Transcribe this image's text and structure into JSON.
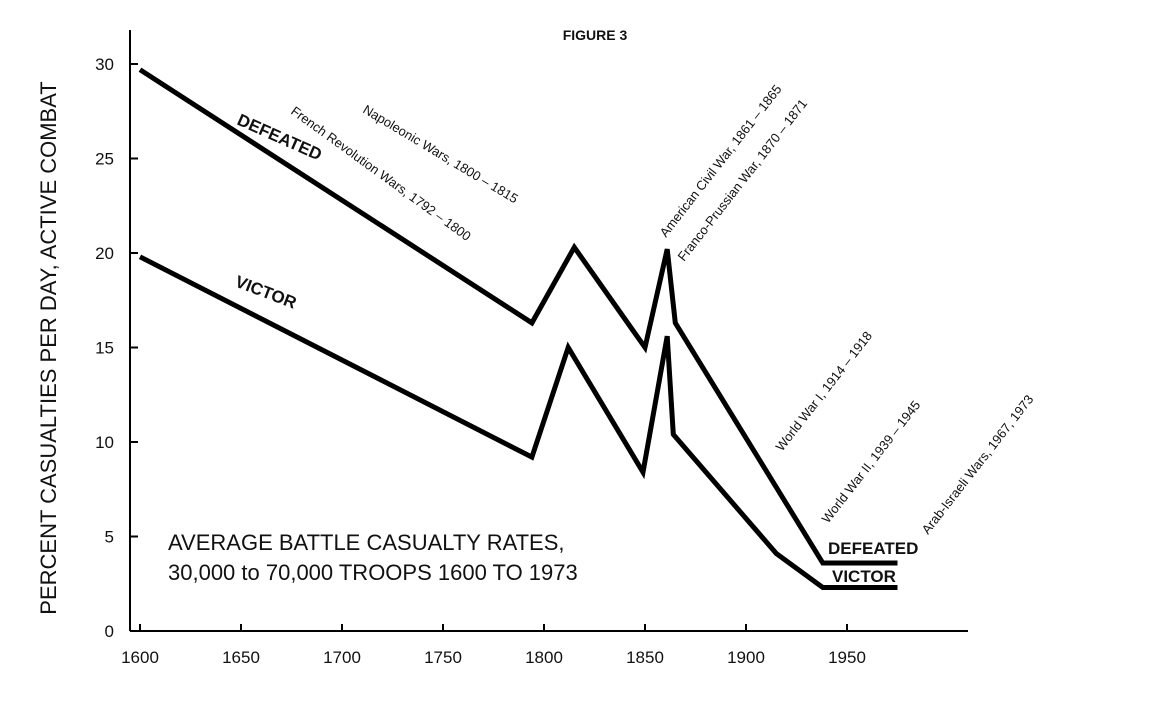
{
  "chart_data": {
    "type": "line",
    "title": "FIGURE 3",
    "ylabel": "PERCENT CASUALTIES PER DAY, ACTIVE COMBAT",
    "xlabel": "",
    "xlim": [
      1600,
      2000
    ],
    "ylim": [
      0,
      30
    ],
    "x_ticks": [
      1600,
      1650,
      1700,
      1750,
      1800,
      1850,
      1900,
      1950
    ],
    "y_ticks": [
      0,
      5,
      10,
      15,
      20,
      25,
      30
    ],
    "grid": false,
    "series": [
      {
        "name": "DEFEATED",
        "color": "#000000",
        "points": [
          [
            1600,
            29.7
          ],
          [
            1794,
            16.3
          ],
          [
            1815,
            20.3
          ],
          [
            1850,
            15.0
          ],
          [
            1861,
            20.2
          ],
          [
            1865,
            16.3
          ],
          [
            1938,
            3.6
          ],
          [
            1975,
            3.6
          ]
        ],
        "labels": [
          "DEFEATED",
          "DEFEATED"
        ]
      },
      {
        "name": "VICTOR",
        "color": "#000000",
        "points": [
          [
            1600,
            19.8
          ],
          [
            1794,
            9.2
          ],
          [
            1812,
            15.0
          ],
          [
            1849,
            8.4
          ],
          [
            1861,
            15.6
          ],
          [
            1864,
            10.4
          ],
          [
            1915,
            4.1
          ],
          [
            1938,
            2.3
          ],
          [
            1975,
            2.3
          ]
        ],
        "labels": [
          "VICTOR",
          "VICTOR"
        ]
      }
    ],
    "annotations": [
      "Napoleonic Wars, 1800 – 1815",
      "French Revolution Wars, 1792 – 1800",
      "American Civil War, 1861 – 1865",
      "Franco-Prussian War, 1870 – 1871",
      "World War I, 1914 – 1918",
      "World War II, 1939 – 1945",
      "Arab-Israeli Wars, 1967, 1973"
    ],
    "note_lines": [
      "AVERAGE BATTLE CASUALTY RATES,",
      "30,000 to 70,000 TROOPS 1600 TO 1973"
    ]
  }
}
